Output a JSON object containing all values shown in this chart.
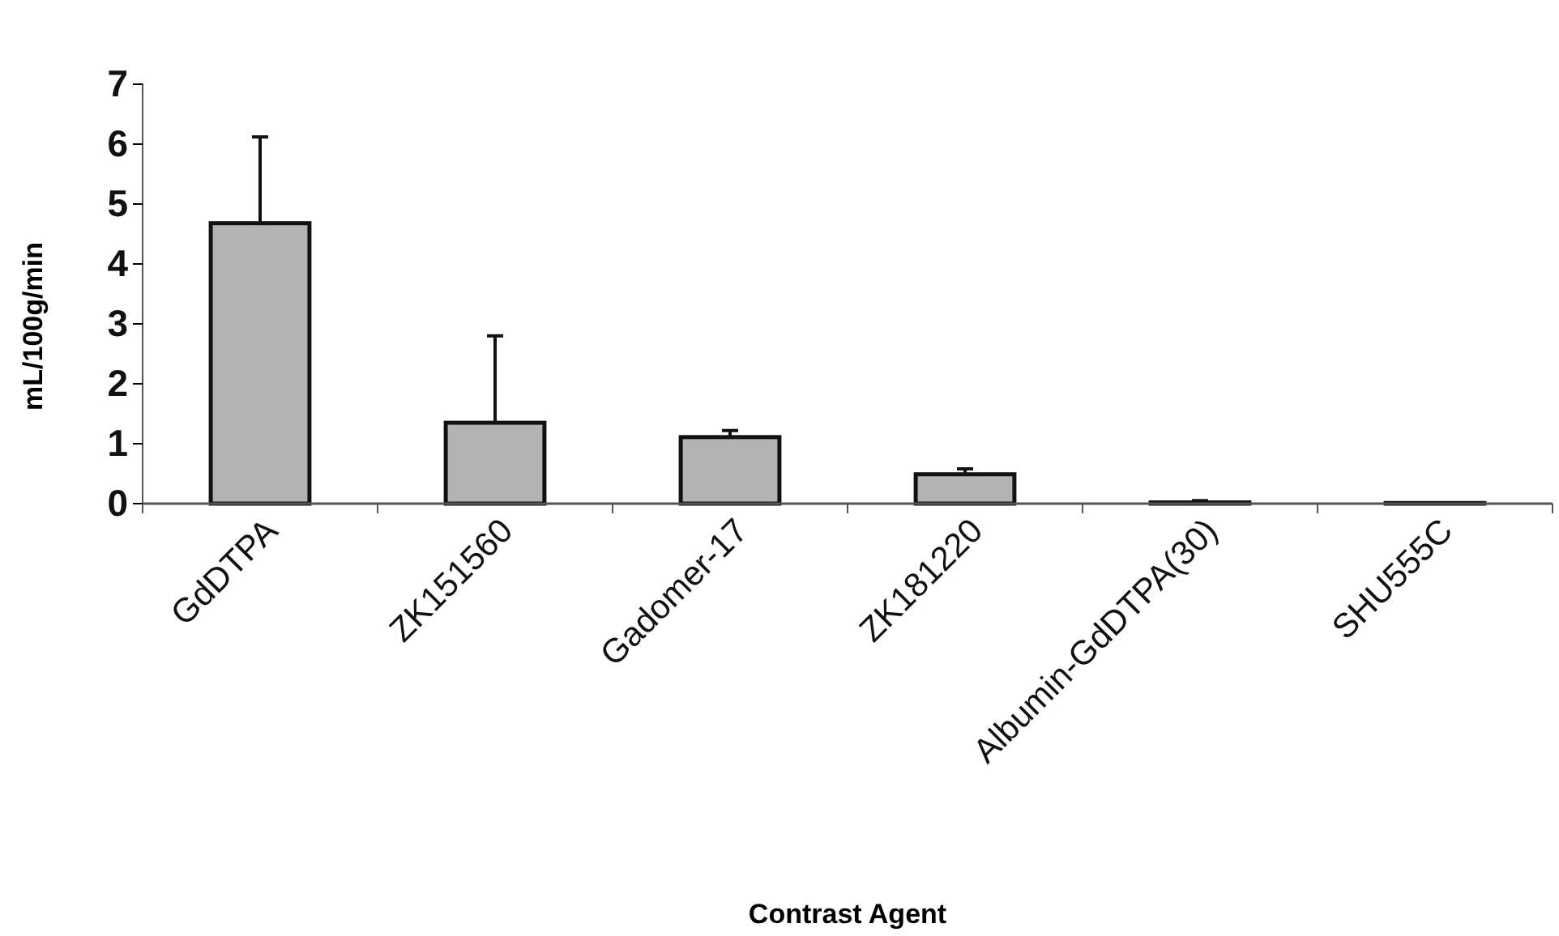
{
  "chart_data": {
    "type": "bar",
    "xlabel": "Contrast Agent",
    "ylabel": "mL/100g/min",
    "categories": [
      "GdDTPA",
      "ZK151560",
      "Gadomer-17",
      "ZK181220",
      "Albumin-GdDTPA(30)",
      "SHU555C"
    ],
    "values": [
      4.68,
      1.35,
      1.11,
      0.49,
      0.02,
      0.01
    ],
    "errors": [
      [
        4.68,
        6.12
      ],
      [
        1.35,
        2.8
      ],
      [
        1.11,
        1.22
      ],
      [
        0.49,
        0.58
      ],
      [
        0.02,
        0.05
      ],
      null
    ],
    "color": "#b3b3b3",
    "ylim": [
      0,
      7
    ],
    "yticks": [
      0,
      1,
      2,
      3,
      4,
      5,
      6,
      7
    ],
    "grid": false
  }
}
